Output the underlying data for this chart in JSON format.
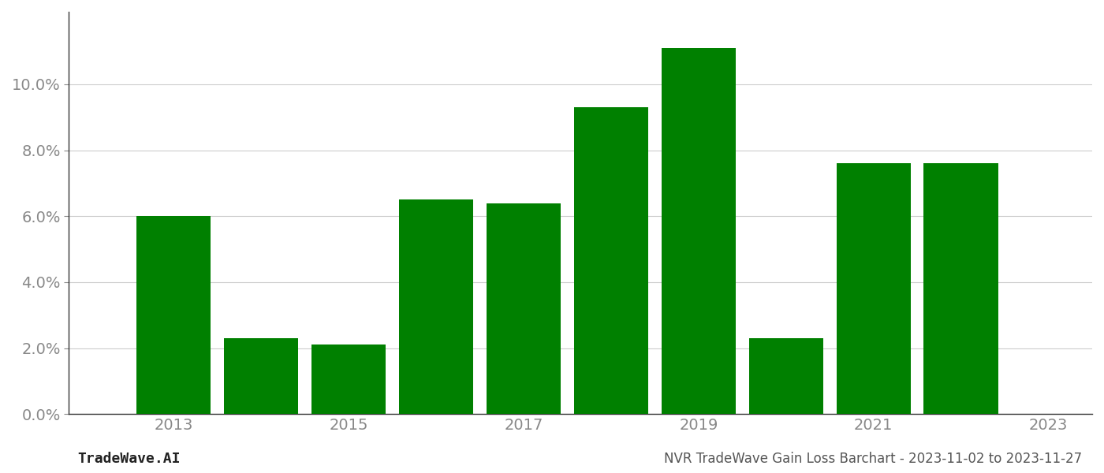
{
  "years": [
    2013,
    2014,
    2015,
    2016,
    2017,
    2018,
    2019,
    2020,
    2021,
    2022
  ],
  "values": [
    0.06,
    0.023,
    0.021,
    0.065,
    0.064,
    0.093,
    0.111,
    0.023,
    0.076,
    0.076
  ],
  "bar_color": "#008000",
  "title": "NVR TradeWave Gain Loss Barchart - 2023-11-02 to 2023-11-27",
  "watermark": "TradeWave.AI",
  "ylim_min": 0.0,
  "ylim_max": 0.122,
  "ytick_values": [
    0.0,
    0.02,
    0.04,
    0.06,
    0.08,
    0.1
  ],
  "xtick_labels": [
    "2013",
    "2015",
    "2017",
    "2019",
    "2021",
    "2023"
  ],
  "xtick_positions": [
    2013,
    2015,
    2017,
    2019,
    2021,
    2023
  ],
  "background_color": "#ffffff",
  "grid_color": "#cccccc",
  "title_fontsize": 12,
  "watermark_fontsize": 13,
  "tick_fontsize": 14,
  "bar_width": 0.85
}
